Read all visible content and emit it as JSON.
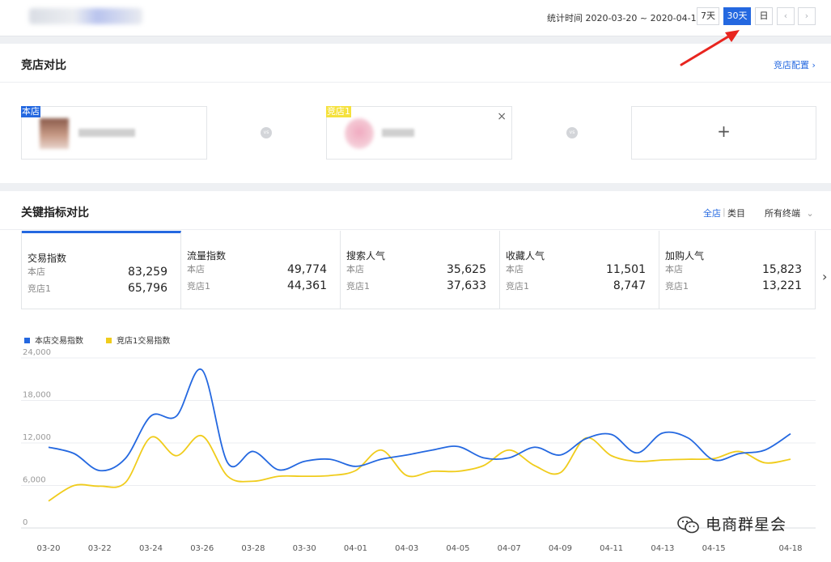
{
  "header": {
    "date_range_label": "统计时间 2020-03-20 ~ 2020-04-18",
    "period_buttons": [
      "7天",
      "30天",
      "日"
    ],
    "active_period": "30天",
    "prev_icon": "chevron-left-icon",
    "next_icon": "chevron-right-icon"
  },
  "competitor_section": {
    "title": "竞店对比",
    "config_link": "竞店配置 ›",
    "shops": [
      {
        "tag": "本店",
        "tag_color": "#2468e0"
      },
      {
        "tag": "竞店1",
        "tag_color": "#f5e13c"
      }
    ],
    "vs_label": "vs",
    "add_label": "+",
    "close_label": "×"
  },
  "metrics_section": {
    "title": "关键指标对比",
    "scope_tabs": [
      "全店",
      "类目"
    ],
    "scope_separator": "|",
    "active_scope": "全店",
    "terminal_select": "所有终端",
    "metrics": [
      {
        "name": "交易指数",
        "self_label": "本店",
        "self_value": "83,259",
        "comp_label": "竞店1",
        "comp_value": "65,796"
      },
      {
        "name": "流量指数",
        "self_label": "本店",
        "self_value": "49,774",
        "comp_label": "竞店1",
        "comp_value": "44,361"
      },
      {
        "name": "搜索人气",
        "self_label": "本店",
        "self_value": "35,625",
        "comp_label": "竞店1",
        "comp_value": "37,633"
      },
      {
        "name": "收藏人气",
        "self_label": "本店",
        "self_value": "11,501",
        "comp_label": "竞店1",
        "comp_value": "8,747"
      },
      {
        "name": "加购人气",
        "self_label": "本店",
        "self_value": "15,823",
        "comp_label": "竞店1",
        "comp_value": "13,221"
      }
    ]
  },
  "chart_data": {
    "type": "line",
    "x": [
      "03-20",
      "03-21",
      "03-22",
      "03-23",
      "03-24",
      "03-25",
      "03-26",
      "03-27",
      "03-28",
      "03-29",
      "03-30",
      "03-31",
      "04-01",
      "04-02",
      "04-03",
      "04-04",
      "04-05",
      "04-06",
      "04-07",
      "04-08",
      "04-09",
      "04-10",
      "04-11",
      "04-12",
      "04-13",
      "04-14",
      "04-15",
      "04-16",
      "04-17",
      "04-18"
    ],
    "x_tick_labels": [
      "03-20",
      "03-22",
      "03-24",
      "03-26",
      "03-28",
      "03-30",
      "04-01",
      "04-03",
      "04-05",
      "04-07",
      "04-09",
      "04-11",
      "04-13",
      "04-15",
      "04-18"
    ],
    "y_ticks": [
      "0",
      "6,000",
      "12,000",
      "18,000",
      "24,000"
    ],
    "ylim": [
      0,
      24000
    ],
    "grid": true,
    "legend_position": "top-left",
    "series": [
      {
        "name": "本店交易指数",
        "color": "#2468e0",
        "values": [
          11400,
          10500,
          8100,
          9800,
          15800,
          15800,
          22300,
          9200,
          10800,
          8200,
          9400,
          9700,
          8700,
          9700,
          10300,
          11000,
          11500,
          9900,
          9900,
          11400,
          10300,
          12600,
          13200,
          10600,
          13400,
          12700,
          9600,
          10500,
          11000,
          13300
        ]
      },
      {
        "name": "竞店1交易指数",
        "color": "#f0cc1c",
        "values": [
          3800,
          6000,
          5900,
          6400,
          12800,
          10200,
          13000,
          7300,
          6600,
          7300,
          7300,
          7400,
          8100,
          11000,
          7400,
          8000,
          8000,
          8800,
          11000,
          8800,
          7800,
          12700,
          10200,
          9400,
          9600,
          9700,
          9800,
          10800,
          9200,
          9700
        ]
      }
    ]
  },
  "watermark": {
    "text": "电商群星会",
    "icon": "wechat-icon"
  }
}
